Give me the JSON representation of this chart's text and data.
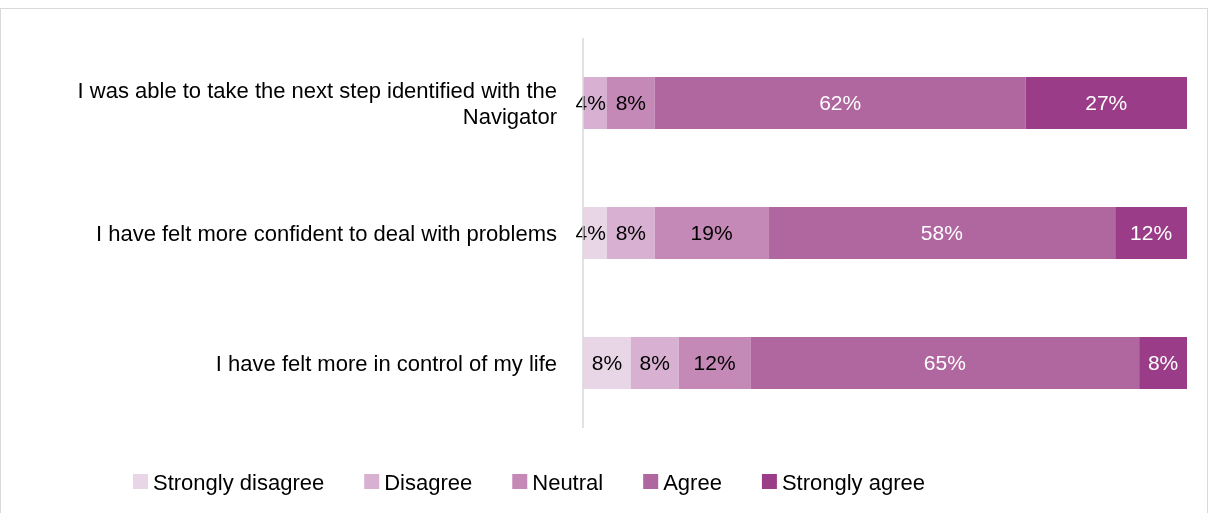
{
  "chart_data": {
    "type": "bar",
    "orientation": "horizontal",
    "stacked": true,
    "categories": [
      "I was able to take the next step identified with the Navigator",
      "I have felt more confident to deal with problems",
      "I have felt more in control of my life"
    ],
    "series": [
      {
        "name": "Strongly disagree",
        "color": "#e8d5e6",
        "values": [
          null,
          4,
          8
        ],
        "value_labels": [
          null,
          "4%",
          "8%"
        ]
      },
      {
        "name": "Disagree",
        "color": "#d8b0d2",
        "values": [
          4,
          8,
          8
        ],
        "value_labels": [
          "4%",
          "8%",
          "8%"
        ]
      },
      {
        "name": "Neutral",
        "color": "#c589b8",
        "values": [
          8,
          19,
          12
        ],
        "value_labels": [
          "8%",
          "19%",
          "12%"
        ]
      },
      {
        "name": "Agree",
        "color": "#b0669f",
        "values": [
          62,
          58,
          65
        ],
        "value_labels": [
          "62%",
          "58%",
          "65%"
        ]
      },
      {
        "name": "Strongly agree",
        "color": "#9a3c88",
        "values": [
          27,
          12,
          8
        ],
        "value_labels": [
          "27%",
          "12%",
          "8%"
        ]
      }
    ],
    "xlim": [
      0,
      101
    ],
    "tick_labels": "y",
    "legend": "bottom",
    "grid": false
  }
}
